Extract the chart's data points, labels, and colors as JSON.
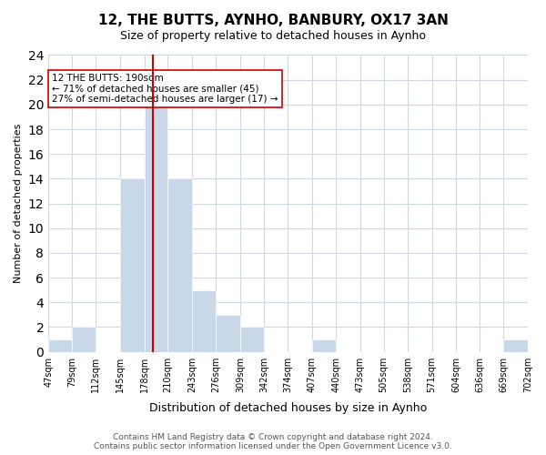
{
  "title": "12, THE BUTTS, AYNHO, BANBURY, OX17 3AN",
  "subtitle": "Size of property relative to detached houses in Aynho",
  "xlabel": "Distribution of detached houses by size in Aynho",
  "ylabel": "Number of detached properties",
  "bin_edges": [
    47,
    79,
    112,
    145,
    178,
    210,
    243,
    276,
    309,
    342,
    374,
    407,
    440,
    473,
    505,
    538,
    571,
    604,
    636,
    669,
    702
  ],
  "bin_labels": [
    "47sqm",
    "79sqm",
    "112sqm",
    "145sqm",
    "178sqm",
    "210sqm",
    "243sqm",
    "276sqm",
    "309sqm",
    "342sqm",
    "374sqm",
    "407sqm",
    "440sqm",
    "473sqm",
    "505sqm",
    "538sqm",
    "571sqm",
    "604sqm",
    "636sqm",
    "669sqm",
    "702sqm"
  ],
  "counts": [
    1,
    2,
    0,
    14,
    20,
    14,
    5,
    3,
    2,
    0,
    0,
    1,
    0,
    0,
    0,
    0,
    0,
    0,
    0,
    1
  ],
  "bar_color": "#c8d8e8",
  "bar_edge_color": "#ffffff",
  "property_value": 190,
  "vline_x": 190,
  "vline_color": "#cc0000",
  "annotation_text": "12 THE BUTTS: 190sqm\n← 71% of detached houses are smaller (45)\n27% of semi-detached houses are larger (17) →",
  "annotation_box_color": "#ffffff",
  "annotation_box_edge": "#cc0000",
  "ylim": [
    0,
    24
  ],
  "yticks": [
    0,
    2,
    4,
    6,
    8,
    10,
    12,
    14,
    16,
    18,
    20,
    22,
    24
  ],
  "footer_text": "Contains HM Land Registry data © Crown copyright and database right 2024.\nContains public sector information licensed under the Open Government Licence v3.0.",
  "background_color": "#ffffff",
  "grid_color": "#d0d8e0"
}
